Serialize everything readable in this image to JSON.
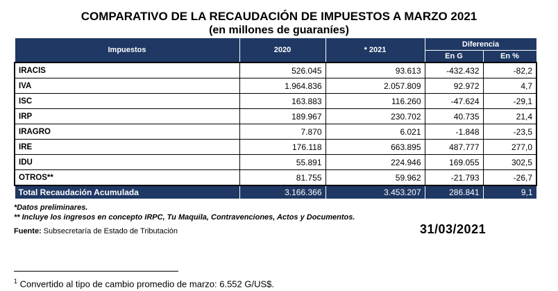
{
  "title": "COMPARATIVO DE LA RECAUDACIÓN DE IMPUESTOS A MARZO 2021",
  "subtitle": "(en millones de guaraníes)",
  "table": {
    "headers": {
      "impuestos": "Impuestos",
      "y2020": "2020",
      "y2021": "* 2021",
      "diferencia": "Diferencia",
      "en_g": "En G",
      "en_pct": "En %"
    },
    "rows": [
      {
        "name": "IRACIS",
        "v2020": "526.045",
        "v2021": "93.613",
        "dif_g": "-432.432",
        "dif_pct": "-82,2"
      },
      {
        "name": "IVA",
        "v2020": "1.964.836",
        "v2021": "2.057.809",
        "dif_g": "92.972",
        "dif_pct": "4,7"
      },
      {
        "name": "ISC",
        "v2020": "163.883",
        "v2021": "116.260",
        "dif_g": "-47.624",
        "dif_pct": "-29,1"
      },
      {
        "name": "IRP",
        "v2020": "189.967",
        "v2021": "230.702",
        "dif_g": "40.735",
        "dif_pct": "21,4"
      },
      {
        "name": "IRAGRO",
        "v2020": "7.870",
        "v2021": "6.021",
        "dif_g": "-1.848",
        "dif_pct": "-23,5"
      },
      {
        "name": "IRE",
        "v2020": "176.118",
        "v2021": "663.895",
        "dif_g": "487.777",
        "dif_pct": "277,0"
      },
      {
        "name": "IDU",
        "v2020": "55.891",
        "v2021": "224.946",
        "dif_g": "169.055",
        "dif_pct": "302,5"
      },
      {
        "name": "OTROS**",
        "v2020": "81.755",
        "v2021": "59.962",
        "dif_g": "-21.793",
        "dif_pct": "-26,7"
      }
    ],
    "total": {
      "name": "Total Recaudación Acumulada",
      "v2020": "3.166.366",
      "v2021": "3.453.207",
      "dif_g": "286.841",
      "dif_pct": "9,1"
    }
  },
  "notes": {
    "note1": "*Datos preliminares.",
    "note2": "** Incluye los ingresos en concepto IRPC, Tu Maquila, Contravenciones, Actos y Documentos.",
    "source_label": "Fuente:",
    "source_text": " Subsecretaría de Estado de Tributación",
    "date": "31/03/2021"
  },
  "footnote": {
    "marker": "1",
    "text": " Convertido al tipo de cambio promedio de marzo: 6.552 G/US$."
  },
  "colors": {
    "header_bg": "#1f3864",
    "header_text": "#ffffff"
  }
}
